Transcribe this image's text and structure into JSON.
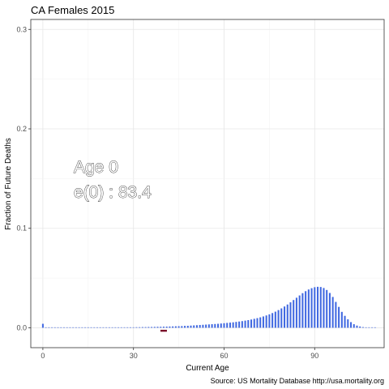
{
  "chart_data": {
    "type": "bar",
    "title": "CA Females 2015",
    "xlabel": "Current Age",
    "ylabel": "Fraction of Future Deaths",
    "caption": "Source: US Mortality Database http://usa.mortality.org",
    "annotation": [
      "Age 0",
      "e(0) : 83.4"
    ],
    "xlim": [
      -4,
      113
    ],
    "ylim": [
      -0.02,
      0.31
    ],
    "xticks": [
      0,
      30,
      60,
      90
    ],
    "yticks": [
      0.0,
      0.1,
      0.2,
      0.3
    ],
    "xtick_labels": [
      "0",
      "30",
      "60",
      "90"
    ],
    "ytick_labels": [
      "0.0",
      "0.1",
      "0.2",
      "0.3"
    ],
    "grid": true,
    "bar_color": "#4169E1",
    "marker_color": "#7a0f2a",
    "x": [
      0,
      1,
      2,
      3,
      4,
      5,
      6,
      7,
      8,
      9,
      10,
      11,
      12,
      13,
      14,
      15,
      16,
      17,
      18,
      19,
      20,
      21,
      22,
      23,
      24,
      25,
      26,
      27,
      28,
      29,
      30,
      31,
      32,
      33,
      34,
      35,
      36,
      37,
      38,
      39,
      40,
      41,
      42,
      43,
      44,
      45,
      46,
      47,
      48,
      49,
      50,
      51,
      52,
      53,
      54,
      55,
      56,
      57,
      58,
      59,
      60,
      61,
      62,
      63,
      64,
      65,
      66,
      67,
      68,
      69,
      70,
      71,
      72,
      73,
      74,
      75,
      76,
      77,
      78,
      79,
      80,
      81,
      82,
      83,
      84,
      85,
      86,
      87,
      88,
      89,
      90,
      91,
      92,
      93,
      94,
      95,
      96,
      97,
      98,
      99,
      100,
      101,
      102,
      103,
      104,
      105,
      106,
      107,
      108,
      109,
      110
    ],
    "values": [
      0.004,
      0.0002,
      0.0001,
      0.0001,
      0.0001,
      0.0001,
      0.0001,
      0.0001,
      0.0001,
      0.0001,
      0.0001,
      0.0001,
      0.0001,
      0.0001,
      0.0002,
      0.0002,
      0.0002,
      0.0003,
      0.0003,
      0.0003,
      0.0003,
      0.0003,
      0.0003,
      0.0003,
      0.0004,
      0.0004,
      0.0004,
      0.0004,
      0.0005,
      0.0005,
      0.0005,
      0.0006,
      0.0006,
      0.0007,
      0.0007,
      0.0008,
      0.0008,
      0.0009,
      0.001,
      0.001,
      0.0011,
      0.0012,
      0.0013,
      0.0014,
      0.0015,
      0.0016,
      0.0017,
      0.0019,
      0.002,
      0.0022,
      0.0024,
      0.0026,
      0.0028,
      0.003,
      0.0032,
      0.0034,
      0.0036,
      0.0038,
      0.004,
      0.0043,
      0.0046,
      0.0049,
      0.0052,
      0.0055,
      0.0059,
      0.0063,
      0.0067,
      0.0072,
      0.0077,
      0.0083,
      0.009,
      0.0097,
      0.0105,
      0.0114,
      0.0124,
      0.0135,
      0.0148,
      0.0162,
      0.0178,
      0.0195,
      0.0214,
      0.0234,
      0.0256,
      0.0279,
      0.0302,
      0.0325,
      0.0348,
      0.0368,
      0.0385,
      0.0398,
      0.0408,
      0.0412,
      0.041,
      0.04,
      0.038,
      0.035,
      0.031,
      0.026,
      0.021,
      0.016,
      0.012,
      0.0085,
      0.0057,
      0.0036,
      0.0022,
      0.0013,
      0.0007,
      0.0004,
      0.0002,
      0.0001,
      0.0001
    ],
    "marker": {
      "x": 40,
      "y": -0.003
    }
  }
}
